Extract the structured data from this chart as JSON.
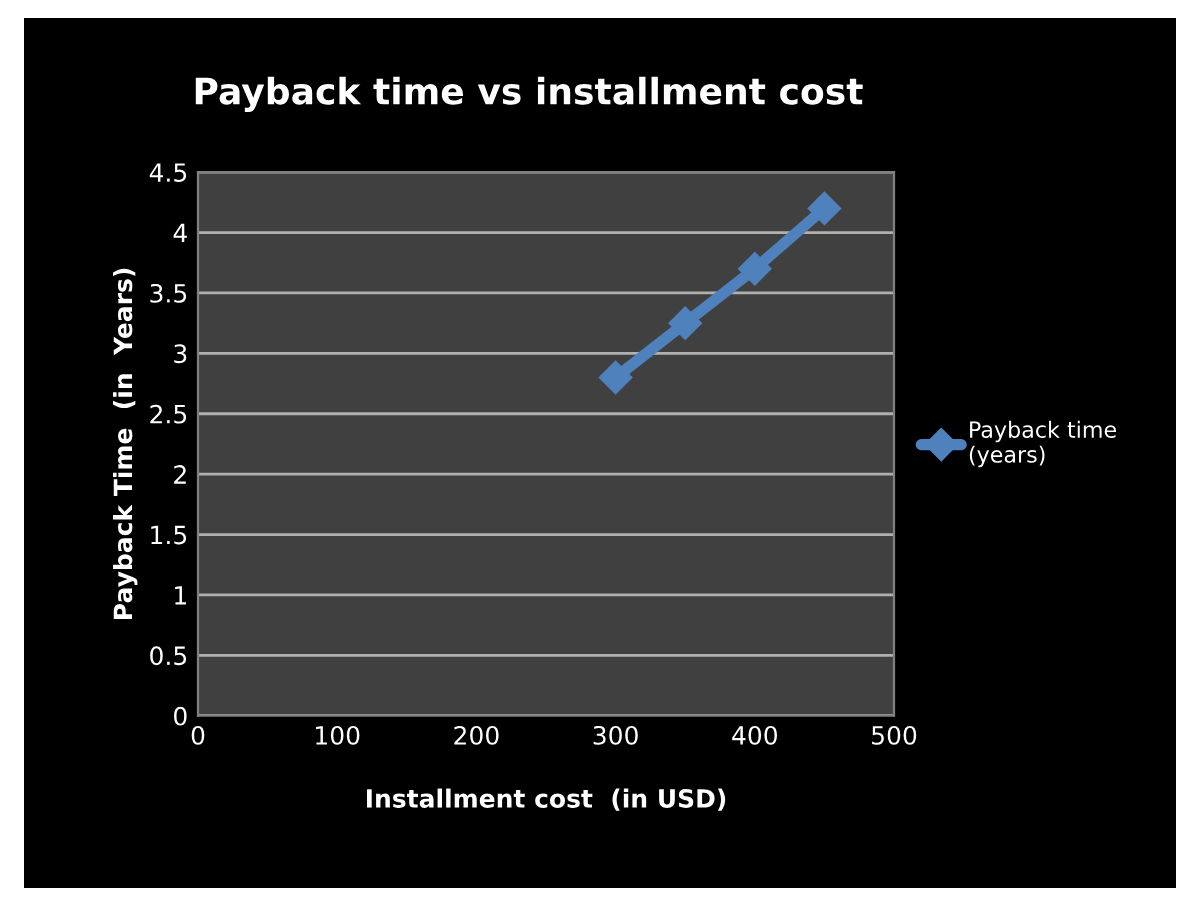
{
  "chart_data": {
    "type": "line",
    "title": "Payback time vs installment cost",
    "xlabel": "Installment cost  (in USD)",
    "ylabel": "Payback Time  (in  Years)",
    "series": [
      {
        "name": "Payback time\n(years)",
        "color": "#4f81bd",
        "x": [
          300,
          350,
          400,
          450
        ],
        "values": [
          2.8,
          3.25,
          3.7,
          4.2
        ]
      }
    ],
    "xlim": [
      0,
      500
    ],
    "xticks": [
      0,
      100,
      200,
      300,
      400,
      500
    ],
    "ylim": [
      0,
      4.5
    ],
    "yticks": [
      0,
      0.5,
      1,
      1.5,
      2,
      2.5,
      3,
      3.5,
      4,
      4.5
    ],
    "grid": "y",
    "legend": "right",
    "marker": "diamond",
    "line_style": "solid"
  }
}
